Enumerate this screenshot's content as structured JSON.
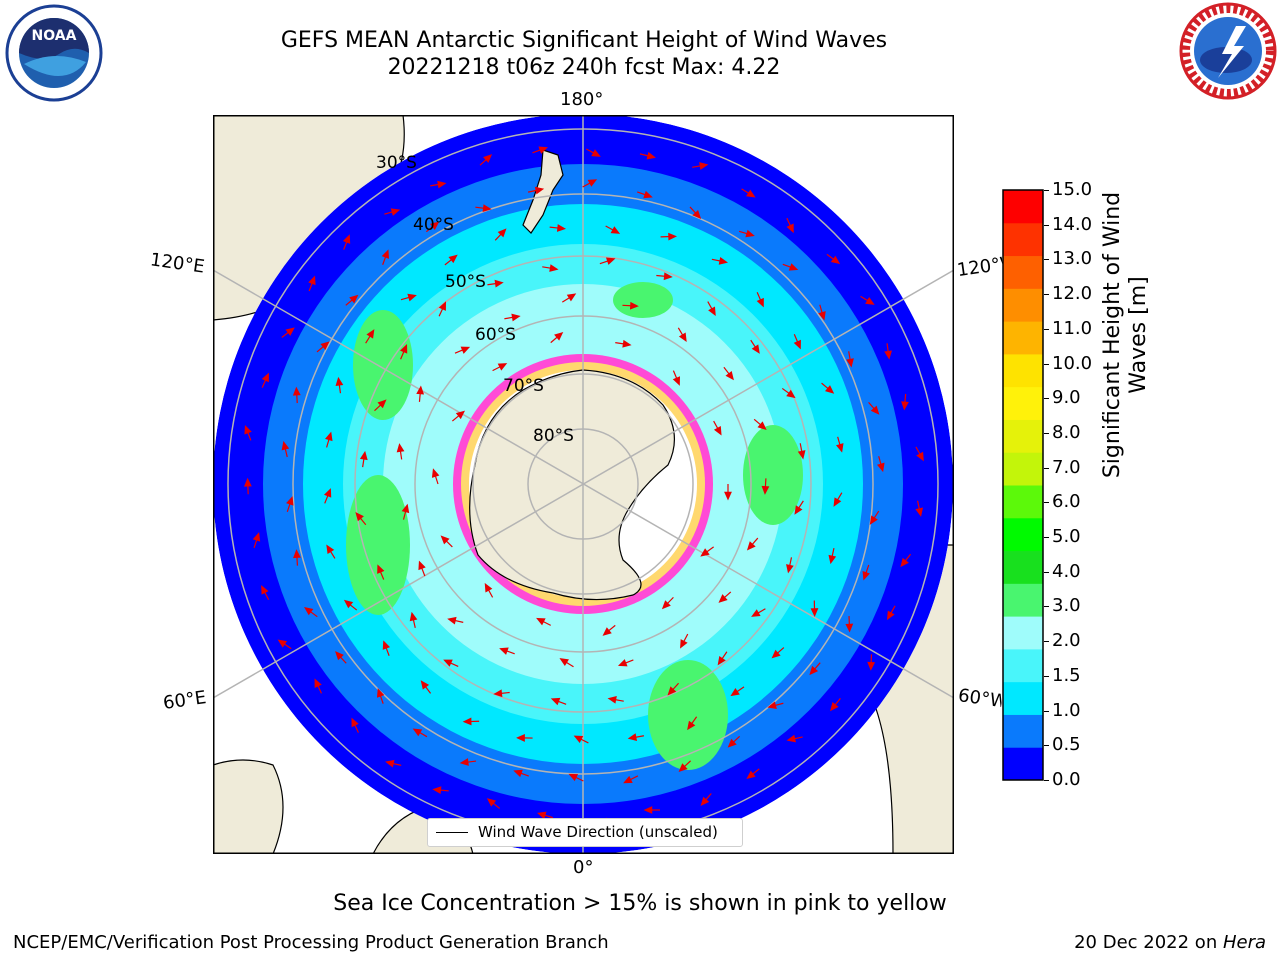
{
  "header": {
    "title_line1": "GEFS MEAN Antarctic Significant Height of Wind Waves",
    "title_line2": "20221218 t06z 240h fcst   Max: 4.22"
  },
  "logos": {
    "left": "noaa-logo",
    "right": "national-weather-service-logo"
  },
  "map": {
    "projection": "south-polar-stereographic",
    "lon_labels": {
      "top": "180°",
      "bottom": "0°",
      "left_upper": "120°E",
      "left_lower": "60°E",
      "right_upper": "120°W",
      "right_lower": "60°W"
    },
    "lat_labels": [
      "30°S",
      "40°S",
      "50°S",
      "60°S",
      "70°S",
      "80°S"
    ],
    "colors": {
      "land": "#efebd9",
      "ocean_open": "#ffffff",
      "gridline": "#b4b4b4",
      "arrow": "#e80000"
    }
  },
  "legend": {
    "label": "Wind Wave Direction (unscaled)"
  },
  "colorbar": {
    "label": "Significant Height of Wind Waves [m]",
    "ticks": [
      "0.0",
      "0.5",
      "1.0",
      "1.5",
      "2.0",
      "3.0",
      "4.0",
      "5.0",
      "6.0",
      "7.0",
      "8.0",
      "9.0",
      "10.0",
      "11.0",
      "12.0",
      "13.0",
      "14.0",
      "15.0"
    ],
    "colors": [
      "#0000ff",
      "#0a7afc",
      "#00e8ff",
      "#49f5fa",
      "#9ffcfb",
      "#49f56f",
      "#18e01e",
      "#00fa00",
      "#5cf90a",
      "#c3f50a",
      "#e5f20a",
      "#fff20a",
      "#fee300",
      "#feb400",
      "#fe8e00",
      "#fe6000",
      "#fe3200",
      "#fe0000"
    ]
  },
  "chart_data": {
    "type": "heatmap",
    "title": "GEFS MEAN Antarctic Significant Height of Wind Waves",
    "subtitle": "20221218 t06z 240h fcst   Max: 4.22",
    "variable": "Significant Height of Wind Waves [m]",
    "max_value": 4.22,
    "color_scale_range": [
      0.0,
      15.0
    ],
    "overlay": "Wind Wave Direction (unscaled)",
    "note": "Sea Ice Concentration > 15% is shown in pink to yellow"
  },
  "footer": {
    "note": "Sea Ice Concentration > 15% is shown in pink to yellow",
    "left": "NCEP/EMC/Verification Post Processing Product Generation Branch",
    "date_prefix": "20 Dec 2022 on ",
    "host": "Hera"
  }
}
